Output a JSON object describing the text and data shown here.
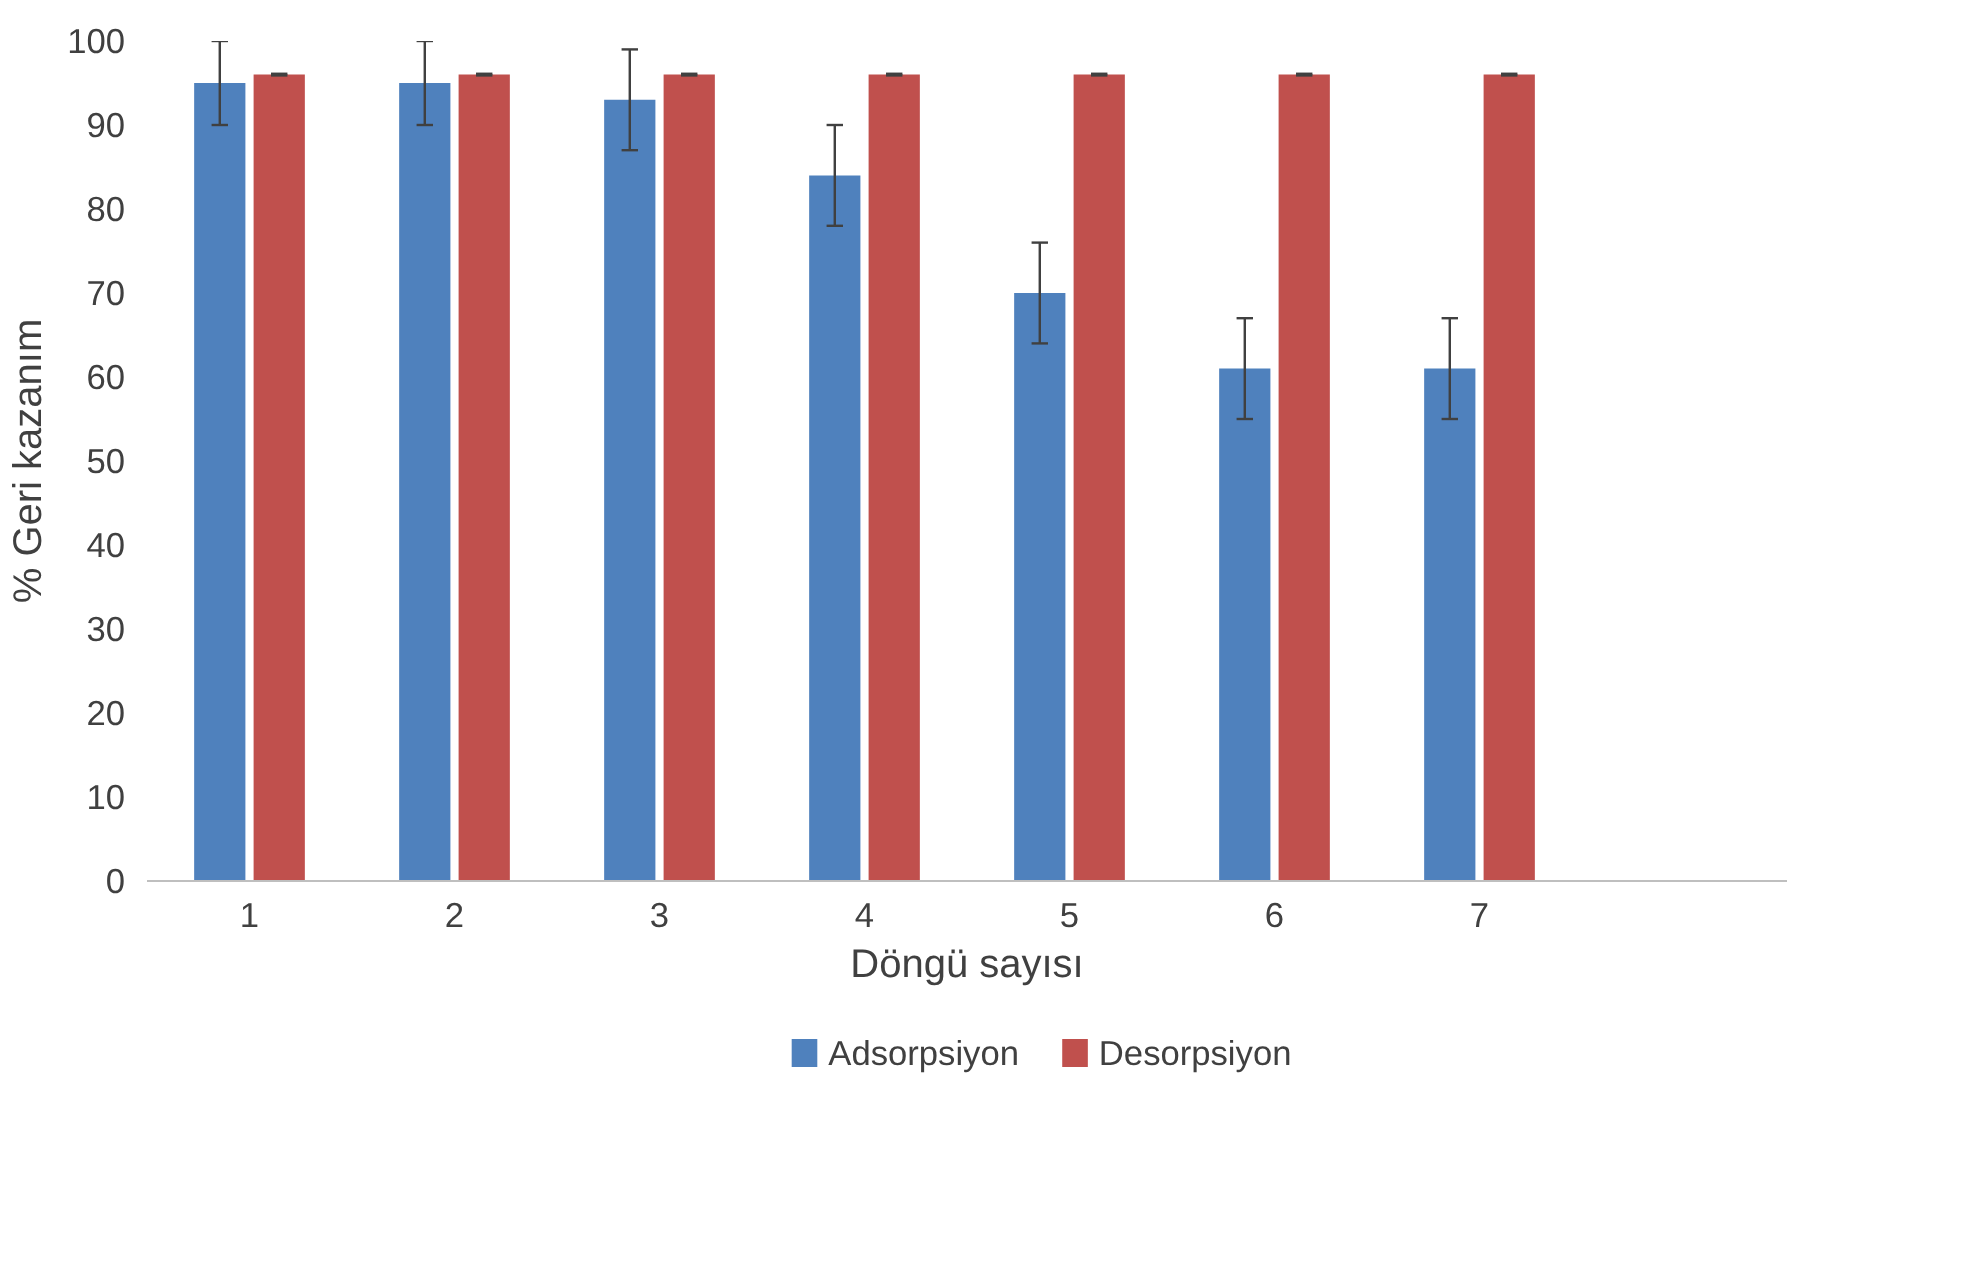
{
  "chart_data": {
    "type": "bar",
    "xlabel": "Döngü sayısı",
    "ylabel": "% Geri kazanım",
    "categories": [
      "1",
      "2",
      "3",
      "4",
      "5",
      "6",
      "7",
      null
    ],
    "series": [
      {
        "name": "Adsorpsiyon",
        "color": "#4f81bd",
        "values": [
          95,
          95,
          93,
          84,
          70,
          61,
          61,
          null
        ],
        "errors": [
          5,
          5,
          6,
          6,
          6,
          6,
          6,
          null
        ]
      },
      {
        "name": "Desorpsiyon",
        "color": "#c0504d",
        "values": [
          96,
          96,
          96,
          96,
          96,
          96,
          96,
          null
        ],
        "errors": [
          0.1,
          0.1,
          0.1,
          0.1,
          0.1,
          0.1,
          0.1,
          null
        ]
      }
    ],
    "ylim": [
      0,
      100
    ],
    "yticks": [
      0,
      10,
      20,
      30,
      40,
      50,
      60,
      70,
      80,
      90,
      100
    ],
    "legend": "bottom"
  }
}
